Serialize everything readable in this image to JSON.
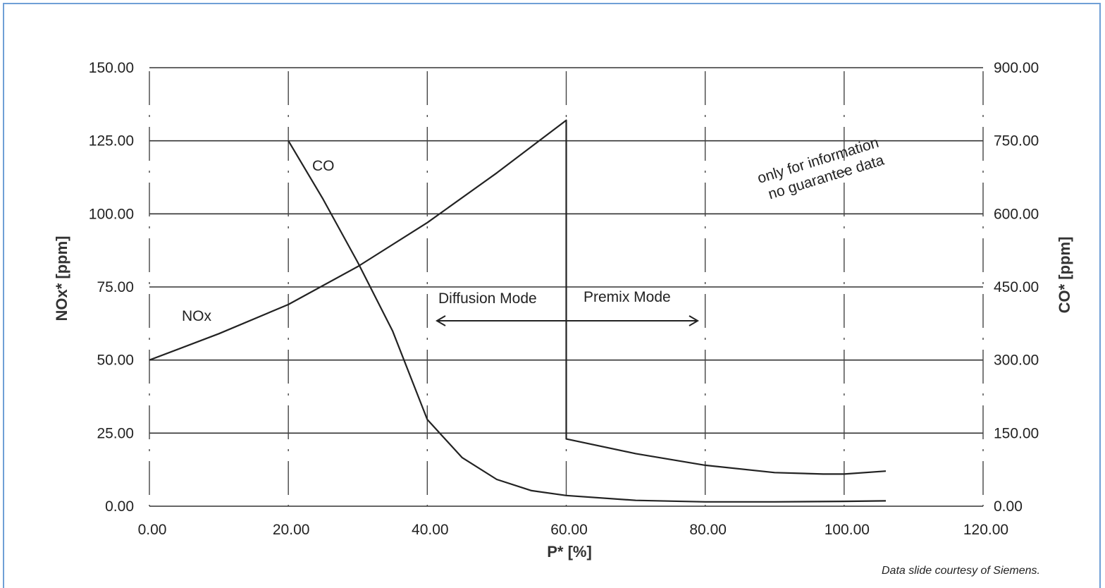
{
  "credit": "Data slide courtesy of Siemens.",
  "colors": {
    "frame": "#6f9fd6",
    "line": "#222222",
    "grid": "#333333"
  },
  "chart_data": {
    "type": "line",
    "title": "",
    "xlabel": "P* [%]",
    "ylabel_left": "NOx* [ppm]",
    "ylabel_right": "CO* [ppm]",
    "xlim": [
      0,
      120
    ],
    "ylim_left": [
      0,
      150
    ],
    "ylim_right": [
      0,
      900
    ],
    "grid": true,
    "x_ticks": [
      "0.00",
      "20.00",
      "40.00",
      "60.00",
      "80.00",
      "100.00",
      "120.00"
    ],
    "y_left_ticks": [
      "0.00",
      "25.00",
      "50.00",
      "75.00",
      "100.00",
      "125.00",
      "150.00"
    ],
    "y_right_ticks": [
      "0.00",
      "150.00",
      "300.00",
      "450.00",
      "600.00",
      "750.00",
      "900.00"
    ],
    "series": [
      {
        "name": "NOx",
        "axis": "left",
        "points": [
          [
            0,
            50
          ],
          [
            10,
            59
          ],
          [
            20,
            69
          ],
          [
            30,
            82
          ],
          [
            40,
            97
          ],
          [
            50,
            114
          ],
          [
            60,
            132
          ],
          [
            60,
            23
          ],
          [
            70,
            18
          ],
          [
            80,
            14
          ],
          [
            90,
            11.5
          ],
          [
            97,
            11
          ],
          [
            100,
            11
          ],
          [
            106,
            12
          ]
        ]
      },
      {
        "name": "CO",
        "axis": "right",
        "points": [
          [
            20,
            750
          ],
          [
            25,
            630
          ],
          [
            30,
            500
          ],
          [
            35,
            360
          ],
          [
            40,
            178
          ],
          [
            45,
            100
          ],
          [
            50,
            55
          ],
          [
            55,
            32
          ],
          [
            60,
            22
          ],
          [
            70,
            12
          ],
          [
            80,
            9
          ],
          [
            90,
            9
          ],
          [
            100,
            10
          ],
          [
            106,
            11
          ]
        ]
      }
    ],
    "annotations": {
      "diffusion_mode": "Diffusion Mode",
      "premix_mode": "Premix Mode",
      "disclaimer_line1": "only for information",
      "disclaimer_line2": "no guarantee data"
    }
  }
}
